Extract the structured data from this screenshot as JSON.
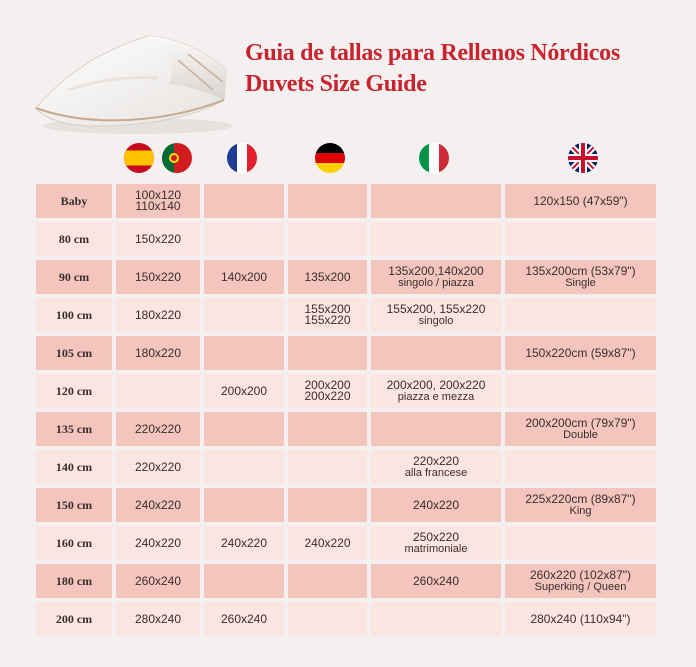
{
  "title": {
    "line1": "Guia de tallas para Rellenos Nórdicos",
    "line2": "Duvets Size Guide"
  },
  "colors": {
    "accent": "#c8242f",
    "row_dark": "#f3c5bd",
    "row_light": "#fbe5e0",
    "background": "#f3f0ef"
  },
  "flags": [
    "spain-flag-icon",
    "portugal-flag-icon",
    "france-flag-icon",
    "germany-flag-icon",
    "italy-flag-icon",
    "uk-flag-icon"
  ],
  "rows": [
    {
      "label": "Baby",
      "es": [
        "100x120",
        "110x140"
      ],
      "fr": "",
      "de": [],
      "it": [],
      "uk": [
        "120x150 (47x59\")"
      ]
    },
    {
      "label": "80 cm",
      "es": [
        "150x220"
      ],
      "fr": "",
      "de": [],
      "it": [],
      "uk": []
    },
    {
      "label": "90 cm",
      "es": [
        "150x220"
      ],
      "fr": "140x200",
      "de": [
        "135x200"
      ],
      "it": [
        "135x200,140x200",
        "singolo / piazza"
      ],
      "uk": [
        "135x200cm (53x79\")",
        "Single"
      ]
    },
    {
      "label": "100 cm",
      "es": [
        "180x220"
      ],
      "fr": "",
      "de": [
        "155x200",
        "155x220"
      ],
      "it": [
        "155x200, 155x220",
        "singolo"
      ],
      "uk": []
    },
    {
      "label": "105 cm",
      "es": [
        "180x220"
      ],
      "fr": "",
      "de": [],
      "it": [],
      "uk": [
        "150x220cm (59x87\")"
      ]
    },
    {
      "label": "120 cm",
      "es": [],
      "fr": "200x200",
      "de": [
        "200x200",
        "200x220"
      ],
      "it": [
        "200x200, 200x220",
        "piazza e mezza"
      ],
      "uk": []
    },
    {
      "label": "135 cm",
      "es": [
        "220x220"
      ],
      "fr": "",
      "de": [],
      "it": [],
      "uk": [
        "200x200cm (79x79\")",
        "Double"
      ]
    },
    {
      "label": "140 cm",
      "es": [
        "220x220"
      ],
      "fr": "",
      "de": [],
      "it": [
        "220x220",
        "alla francese"
      ],
      "uk": []
    },
    {
      "label": "150 cm",
      "es": [
        "240x220"
      ],
      "fr": "",
      "de": [],
      "it": [
        "240x220"
      ],
      "uk": [
        "225x220cm (89x87\")",
        "King"
      ]
    },
    {
      "label": "160 cm",
      "es": [
        "240x220"
      ],
      "fr": "240x220",
      "de": [
        "240x220"
      ],
      "it": [
        "250x220",
        "matrimoniale"
      ],
      "uk": []
    },
    {
      "label": "180 cm",
      "es": [
        "260x240"
      ],
      "fr": "",
      "de": [],
      "it": [
        "260x240"
      ],
      "uk": [
        "260x220 (102x87\")",
        "Superking / Queen"
      ]
    },
    {
      "label": "200 cm",
      "es": [
        "280x240"
      ],
      "fr": "260x240",
      "de": [],
      "it": [],
      "uk": [
        "280x240 (110x94\")"
      ]
    }
  ]
}
